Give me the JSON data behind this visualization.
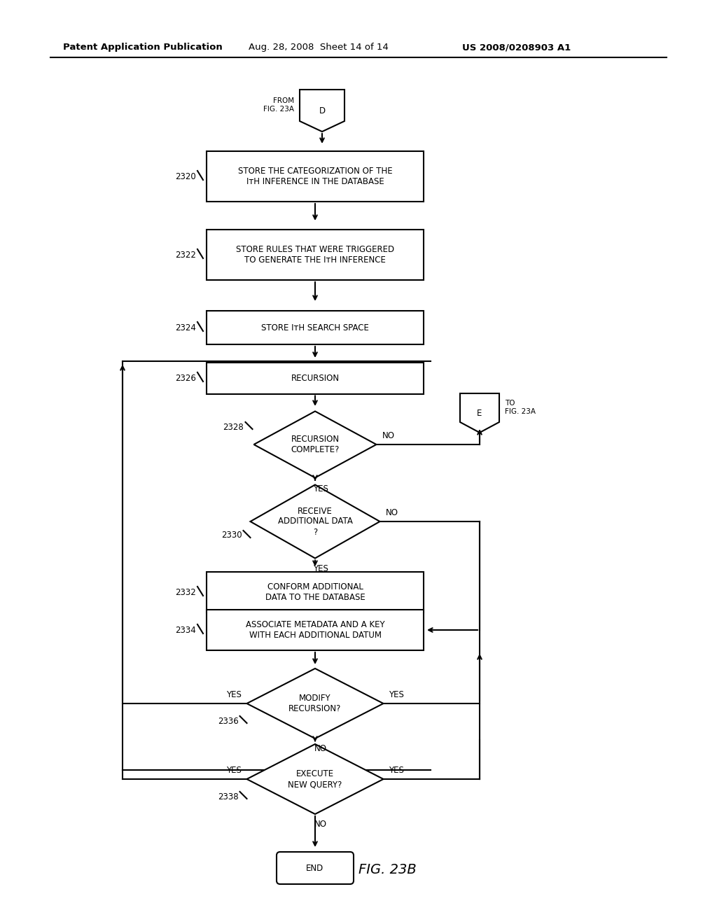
{
  "background_color": "#ffffff",
  "line_color": "#000000",
  "header_left": "Patent Application Publication",
  "header_center": "Aug. 28, 2008  Sheet 14 of 14",
  "header_right": "US 2008/0208903 A1",
  "fig_label": "FIG. 23B",
  "lw": 1.5,
  "font_size": 8.5,
  "num_font_size": 8.5,
  "header_font_size": 9.5
}
